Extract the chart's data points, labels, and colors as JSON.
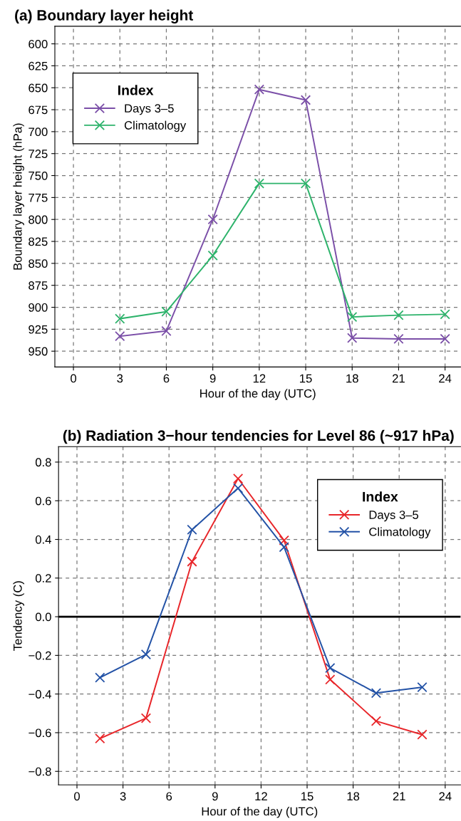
{
  "chart_data": [
    {
      "type": "line",
      "title": "(a) Boundary layer height",
      "xlabel": "Hour of the day (UTC)",
      "ylabel": "Boundary layer height (hPa)",
      "legend_title": "Index",
      "x": [
        3,
        6,
        9,
        12,
        15,
        18,
        21,
        24
      ],
      "series": [
        {
          "name": "Days 3–5",
          "color": "#7b4fa8",
          "values": [
            933,
            927,
            800,
            652,
            664,
            935,
            936,
            936
          ]
        },
        {
          "name": "Climatology",
          "color": "#2db36b",
          "values": [
            913,
            905,
            841,
            759,
            759,
            911,
            909,
            908
          ]
        }
      ],
      "xlim": [
        -1.2,
        25
      ],
      "xticks": [
        0,
        3,
        6,
        9,
        12,
        15,
        18,
        21,
        24
      ],
      "ylim": [
        968,
        580
      ],
      "yticks": [
        600,
        625,
        650,
        675,
        700,
        725,
        750,
        775,
        800,
        825,
        850,
        875,
        900,
        925,
        950
      ],
      "grid": true,
      "legend": "top left",
      "marker": "cross",
      "line_style": "solid"
    },
    {
      "type": "line",
      "title": "(b) Radiation 3−hour tendencies for Level 86 (~917 hPa)",
      "xlabel": "Hour of the day (UTC)",
      "ylabel": "Tendency (C)",
      "legend_title": "Index",
      "x": [
        1.5,
        4.5,
        7.5,
        10.5,
        13.5,
        16.5,
        19.5,
        22.5
      ],
      "series": [
        {
          "name": "Days 3–5",
          "color": "#e8262a",
          "values": [
            -0.63,
            -0.525,
            0.285,
            0.715,
            0.395,
            -0.325,
            -0.54,
            -0.61
          ]
        },
        {
          "name": "Climatology",
          "color": "#2352a6",
          "values": [
            -0.315,
            -0.195,
            0.45,
            0.665,
            0.36,
            -0.265,
            -0.395,
            -0.365
          ]
        }
      ],
      "xlim": [
        -1.2,
        25
      ],
      "xticks": [
        0,
        3,
        6,
        9,
        12,
        15,
        18,
        21,
        24
      ],
      "ylim": [
        -0.87,
        0.88
      ],
      "yticks": [
        {
          "value": -0.8,
          "label": "−0.8"
        },
        {
          "value": -0.6,
          "label": "−0.6"
        },
        {
          "value": -0.4,
          "label": "−0.4"
        },
        {
          "value": -0.2,
          "label": "−0.2"
        },
        {
          "value": 0,
          "label": "0.0"
        },
        {
          "value": 0.2,
          "label": "0.2"
        },
        {
          "value": 0.4,
          "label": "0.4"
        },
        {
          "value": 0.6,
          "label": "0.6"
        },
        {
          "value": 0.8,
          "label": "0.8"
        }
      ],
      "ref_lines": [
        {
          "axis": "y",
          "value": 0,
          "color": "#000000",
          "line_style": "solid"
        }
      ],
      "grid": true,
      "legend": "top right",
      "marker": "cross",
      "line_style": "solid"
    }
  ]
}
